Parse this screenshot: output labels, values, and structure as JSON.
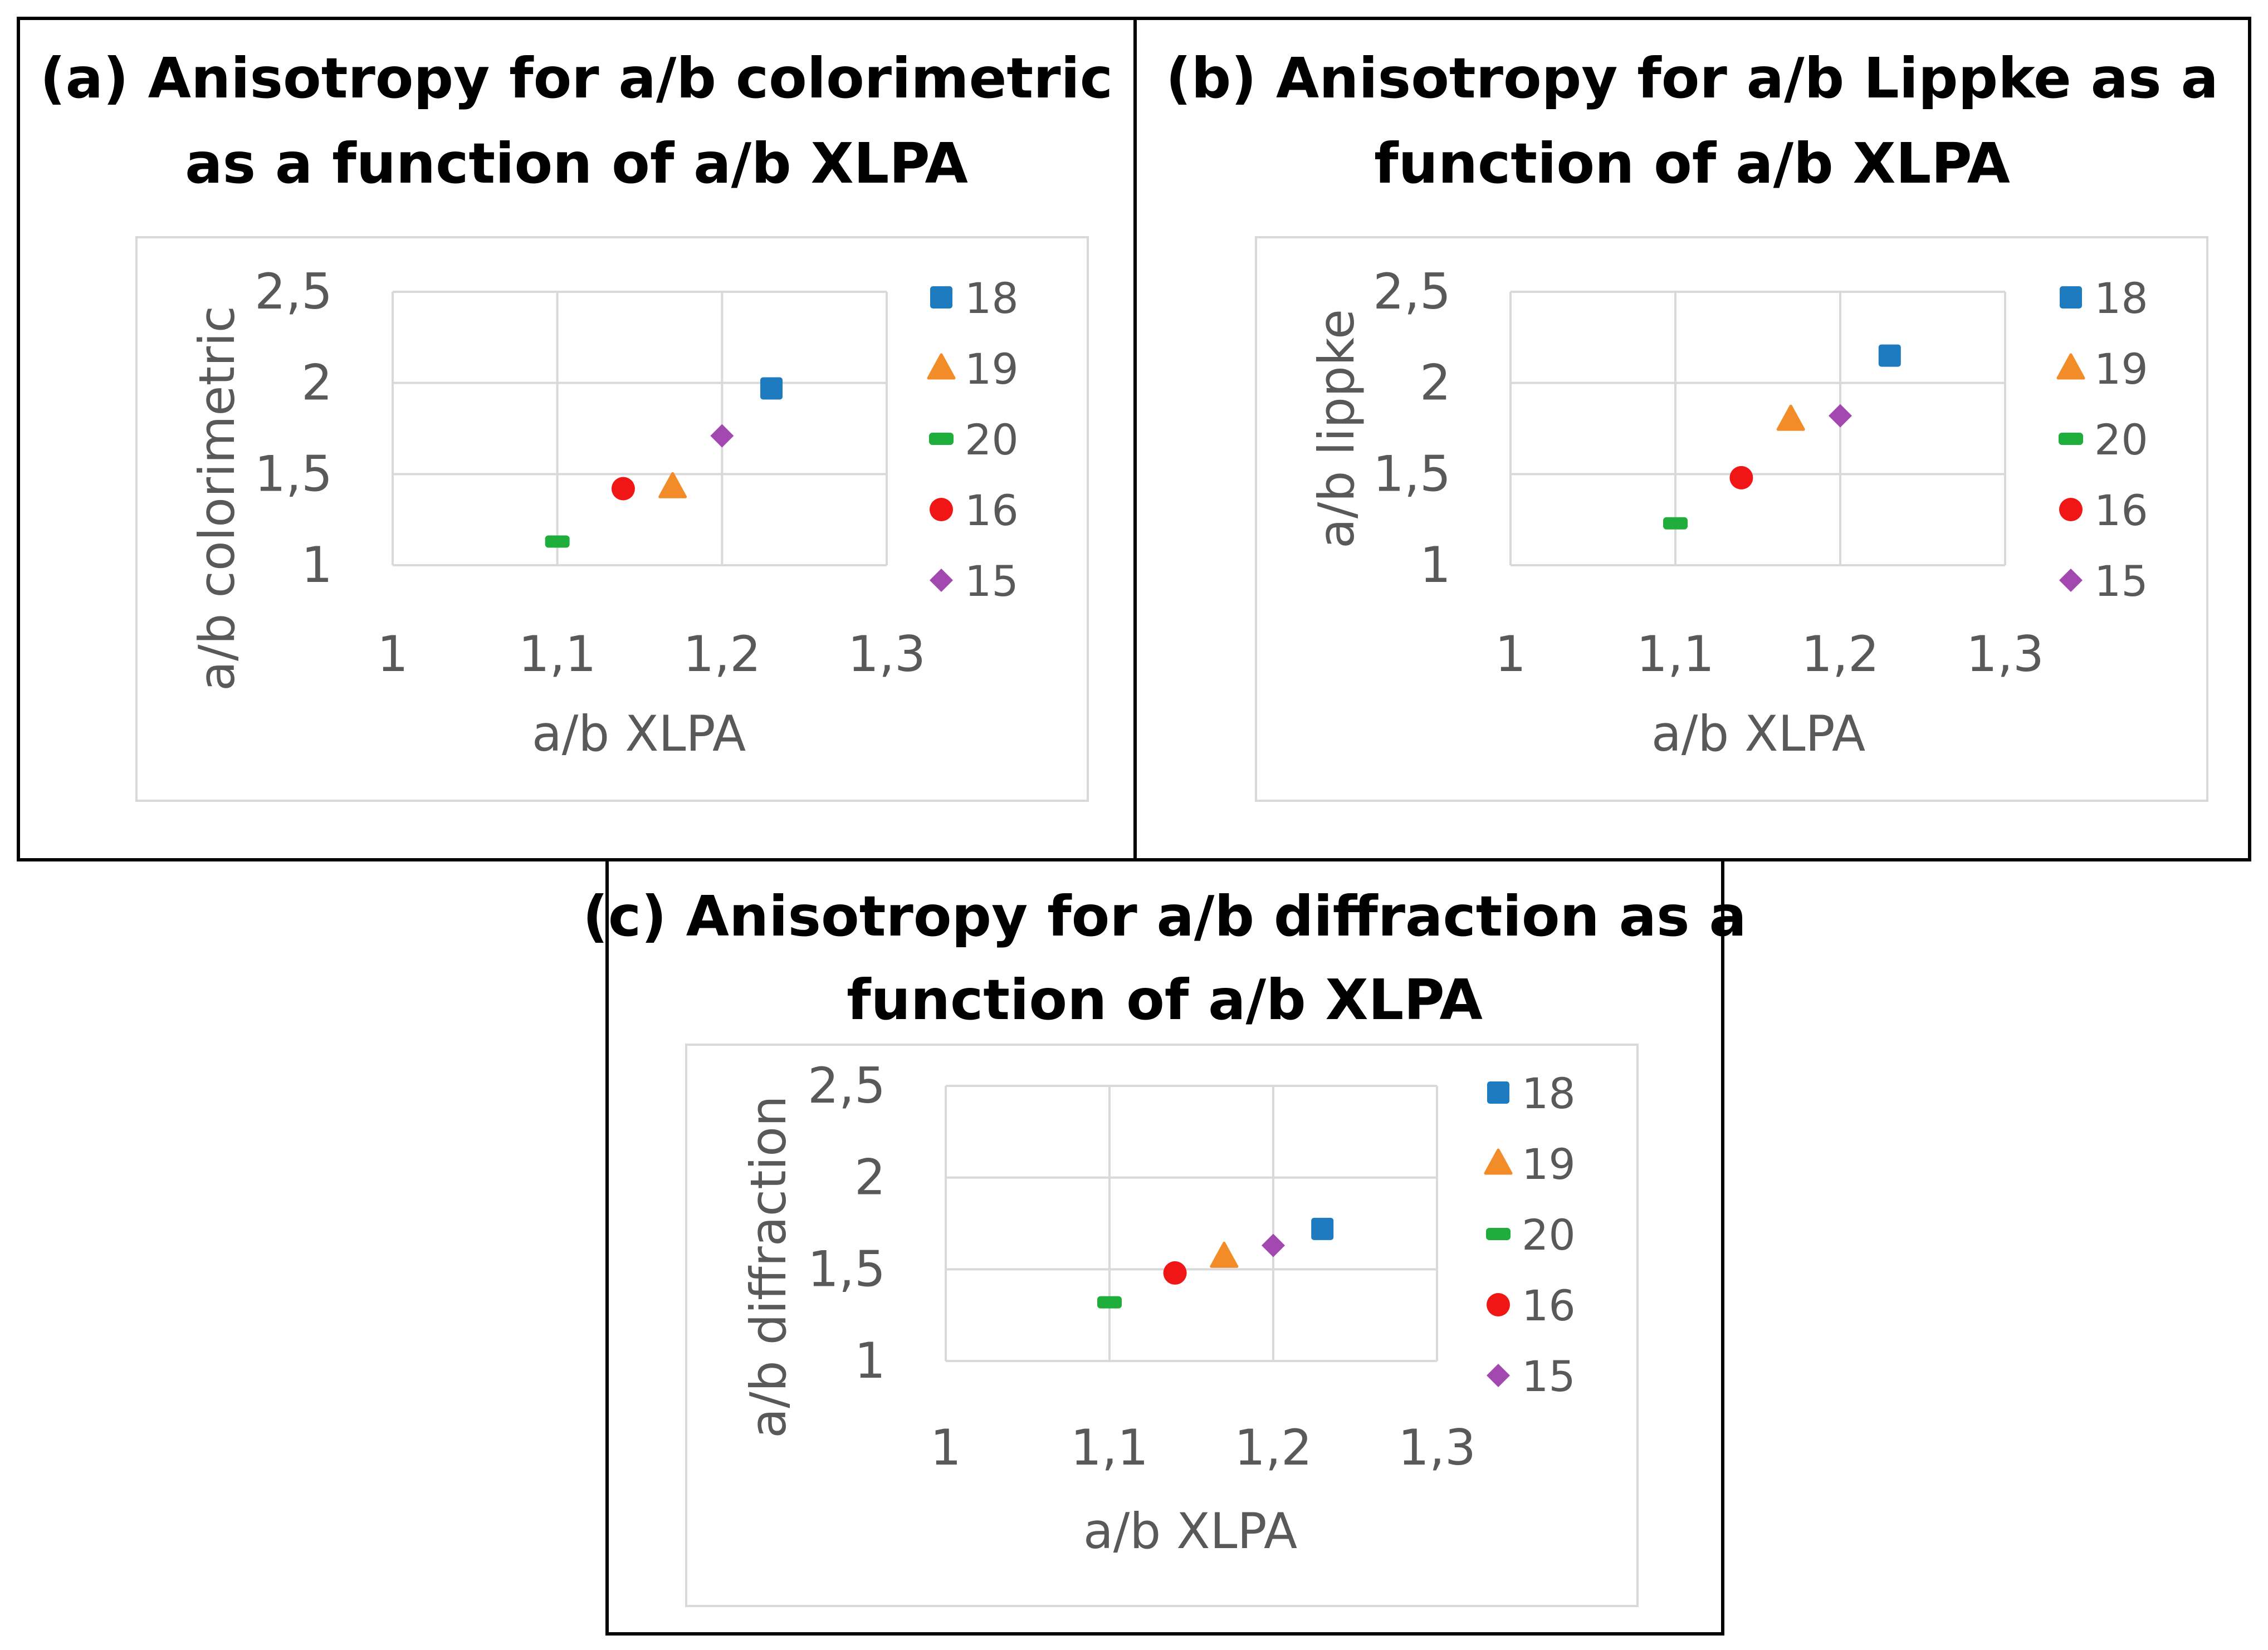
{
  "colors": {
    "18": "#1f7bbf",
    "19": "#f28c28",
    "20": "#1fae3c",
    "16": "#f01616",
    "15": "#a348b0",
    "grid": "#d9d9d9",
    "text": "#595959",
    "frame": "#000000"
  },
  "legend": [
    {
      "name": "18",
      "marker": "square"
    },
    {
      "name": "19",
      "marker": "triangle"
    },
    {
      "name": "20",
      "marker": "dash"
    },
    {
      "name": "16",
      "marker": "circle"
    },
    {
      "name": "15",
      "marker": "diamond"
    }
  ],
  "chart_data": [
    {
      "id": "a",
      "type": "scatter",
      "title_lines": [
        "(a) Anisotropy for a/b colorimetric",
        "as a function of a/b XLPA"
      ],
      "xlabel": "a/b XLPA",
      "ylabel": "a/b colorimetric",
      "xlim": [
        1,
        1.3
      ],
      "ylim": [
        1,
        2.5
      ],
      "xticks": [
        "1",
        "1,1",
        "1,2",
        "1,3"
      ],
      "yticks": [
        "1",
        "1,5",
        "2",
        "2,5"
      ],
      "series": [
        {
          "name": "18",
          "x": 1.23,
          "y": 1.97
        },
        {
          "name": "19",
          "x": 1.17,
          "y": 1.43
        },
        {
          "name": "20",
          "x": 1.1,
          "y": 1.13
        },
        {
          "name": "16",
          "x": 1.14,
          "y": 1.42
        },
        {
          "name": "15",
          "x": 1.2,
          "y": 1.71
        }
      ]
    },
    {
      "id": "b",
      "type": "scatter",
      "title_lines": [
        "(b) Anisotropy for a/b Lippke as a",
        "function of a/b XLPA"
      ],
      "xlabel": "a/b XLPA",
      "ylabel": "a/b lippke",
      "xlim": [
        1,
        1.3
      ],
      "ylim": [
        1,
        2.5
      ],
      "xticks": [
        "1",
        "1,1",
        "1,2",
        "1,3"
      ],
      "yticks": [
        "1",
        "1,5",
        "2",
        "2,5"
      ],
      "series": [
        {
          "name": "18",
          "x": 1.23,
          "y": 2.15
        },
        {
          "name": "19",
          "x": 1.17,
          "y": 1.8
        },
        {
          "name": "20",
          "x": 1.1,
          "y": 1.23
        },
        {
          "name": "16",
          "x": 1.14,
          "y": 1.48
        },
        {
          "name": "15",
          "x": 1.2,
          "y": 1.82
        }
      ]
    },
    {
      "id": "c",
      "type": "scatter",
      "title_lines": [
        "(c) Anisotropy for a/b diffraction as a",
        "function of a/b XLPA"
      ],
      "xlabel": "a/b XLPA",
      "ylabel": "a/b diffraction",
      "xlim": [
        1,
        1.3
      ],
      "ylim": [
        1,
        2.5
      ],
      "xticks": [
        "1",
        "1,1",
        "1,2",
        "1,3"
      ],
      "yticks": [
        "1",
        "1,5",
        "2",
        "2,5"
      ],
      "series": [
        {
          "name": "18",
          "x": 1.23,
          "y": 1.72
        },
        {
          "name": "19",
          "x": 1.17,
          "y": 1.57
        },
        {
          "name": "20",
          "x": 1.1,
          "y": 1.32
        },
        {
          "name": "16",
          "x": 1.14,
          "y": 1.48
        },
        {
          "name": "15",
          "x": 1.2,
          "y": 1.63
        }
      ]
    }
  ]
}
